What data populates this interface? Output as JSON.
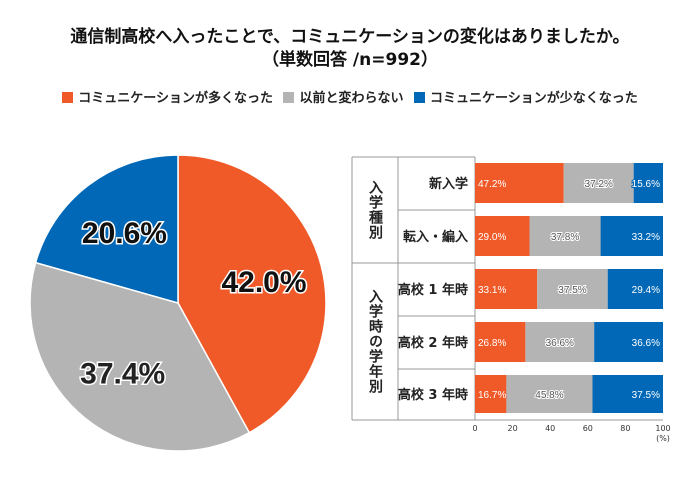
{
  "chart_data": [
    {
      "type": "pie",
      "title": "通信制高校へ入ったことで、コミュニケーションの変化はありましたか。",
      "subtitle": "（単数回答 /n=992）",
      "series_names": [
        "コミュニケーションが多くなった",
        "以前と変わらない",
        "コミュニケーションが少なくなった"
      ],
      "values": [
        42.0,
        37.4,
        20.6
      ],
      "labels": [
        "42.0%",
        "37.4%",
        "20.6%"
      ],
      "colors": [
        "#f05a28",
        "#b4b4b4",
        "#0068b7"
      ],
      "start": "top, clockwise",
      "legend": "top"
    },
    {
      "type": "bar",
      "orientation": "horizontal-stacked",
      "groups": [
        {
          "label": "入学種別",
          "rows": [
            0,
            1
          ]
        },
        {
          "label": "入学時の学年別",
          "rows": [
            2,
            3,
            4
          ]
        }
      ],
      "categories": [
        "新入学",
        "転入・編入",
        "高校 1 年時",
        "高校 2 年時",
        "高校 3 年時"
      ],
      "series": [
        {
          "name": "コミュニケーションが多くなった",
          "values": [
            47.2,
            29.0,
            33.1,
            26.8,
            16.7
          ],
          "labels": [
            "47.2%",
            "29.0%",
            "33.1%",
            "26.8%",
            "16.7%"
          ]
        },
        {
          "name": "以前と変わらない",
          "values": [
            37.2,
            37.8,
            37.5,
            36.6,
            45.8
          ],
          "labels": [
            "37.2%",
            "37.8%",
            "37.5%",
            "36.6%",
            "45.8%"
          ]
        },
        {
          "name": "コミュニケーションが少なくなった",
          "values": [
            15.6,
            33.2,
            29.4,
            36.6,
            37.5
          ],
          "labels": [
            "15.6%",
            "33.2%",
            "29.4%",
            "36.6%",
            "37.5%"
          ]
        }
      ],
      "xlim": [
        0,
        100
      ],
      "xticks": [
        "0",
        "20",
        "40",
        "60",
        "80",
        "100"
      ],
      "xunit": "(%)",
      "grid": false
    }
  ]
}
